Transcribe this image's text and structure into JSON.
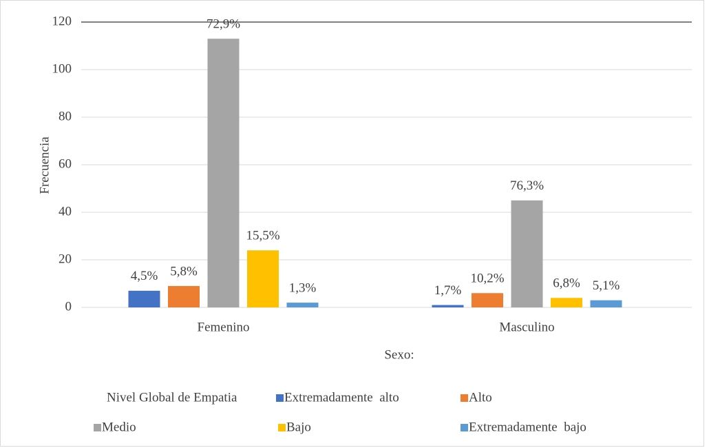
{
  "chart_data": {
    "type": "bar",
    "categories": [
      "Femenino",
      "Masculino"
    ],
    "series": [
      {
        "name": "Extremadamente  alto",
        "color": "#4472c4",
        "values": [
          7,
          1
        ],
        "labels": [
          "4,5%",
          "1,7%"
        ]
      },
      {
        "name": "Alto",
        "color": "#ed7d31",
        "values": [
          9,
          6
        ],
        "labels": [
          "5,8%",
          "10,2%"
        ]
      },
      {
        "name": "Medio",
        "color": "#a5a5a5",
        "values": [
          113,
          45
        ],
        "labels": [
          "72,9%",
          "76,3%"
        ]
      },
      {
        "name": "Bajo",
        "color": "#ffc000",
        "values": [
          24,
          4
        ],
        "labels": [
          "15,5%",
          "6,8%"
        ]
      },
      {
        "name": "Extremadamente  bajo",
        "color": "#5b9bd5",
        "values": [
          2,
          3
        ],
        "labels": [
          "1,3%",
          "5,1%"
        ]
      }
    ],
    "xlabel": "Sexo:",
    "ylabel": "Frecuencia",
    "legend_title": "Nivel Global de Empatia",
    "ylim": [
      0,
      120
    ],
    "yticks": [
      0,
      20,
      40,
      60,
      80,
      100,
      120
    ],
    "grid": true,
    "legend": "bottom"
  }
}
